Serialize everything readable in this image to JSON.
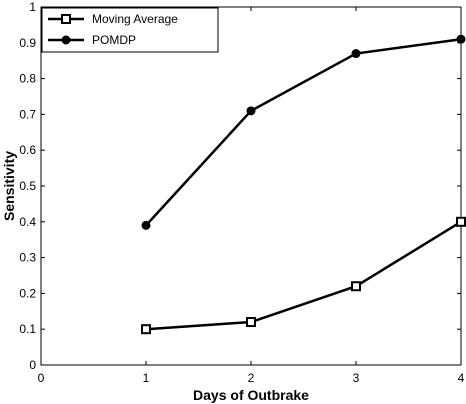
{
  "chart_data": {
    "type": "line",
    "xlabel": "Days of Outbrake",
    "ylabel": "Sensitivity",
    "xlim": [
      0,
      4
    ],
    "ylim": [
      0,
      1
    ],
    "x_ticks": [
      "0",
      "1",
      "2",
      "3",
      "4"
    ],
    "y_ticks": [
      "0",
      "0.1",
      "0.2",
      "0.3",
      "0.4",
      "0.5",
      "0.6",
      "0.7",
      "0.8",
      "0.9",
      "1"
    ],
    "grid": false,
    "legend_position": "top-left",
    "x": [
      1,
      2,
      3,
      4
    ],
    "series": [
      {
        "name": "Moving Average",
        "marker": "square",
        "color": "#000000",
        "values": [
          0.1,
          0.12,
          0.22,
          0.4
        ]
      },
      {
        "name": "POMDP",
        "marker": "circle",
        "color": "#000000",
        "values": [
          0.39,
          0.71,
          0.87,
          0.91
        ]
      }
    ]
  }
}
